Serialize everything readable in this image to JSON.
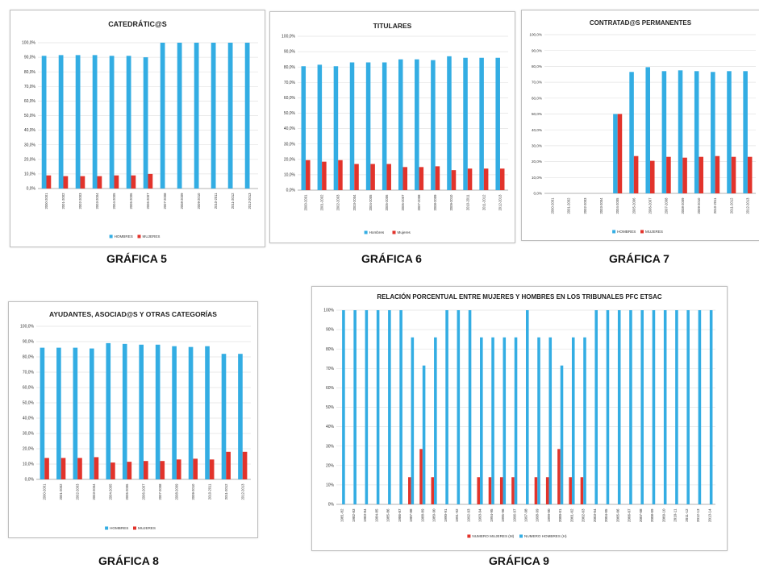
{
  "colors": {
    "hombres": "#33ADE3",
    "mujeres": "#E2332B",
    "grid": "#e3e3e3",
    "axis": "#9a9a9a",
    "text": "#333333"
  },
  "chart_data": [
    {
      "id": "g5",
      "type": "bar",
      "title": "CATEDRÁTIC@S",
      "caption": "GRÁFICA 5",
      "categories": [
        "2000-2001",
        "2001-2002",
        "2002-2003",
        "2003-2004",
        "2004-2005",
        "2005-2006",
        "2006-2007",
        "2007-2008",
        "2008-2009",
        "2009-2010",
        "2010-2011",
        "2011-2012",
        "2012-2013"
      ],
      "series": [
        {
          "name": "HOMBRES",
          "color": "#33ADE3",
          "values": [
            91,
            91.5,
            91.5,
            91.5,
            91,
            91,
            90,
            100,
            100,
            100,
            100,
            100,
            100
          ]
        },
        {
          "name": "MUJERES",
          "color": "#E2332B",
          "values": [
            9,
            8.5,
            8.5,
            8.5,
            9,
            9,
            10,
            0,
            0,
            0,
            0,
            0,
            0
          ]
        }
      ],
      "yticks": [
        "0,0%",
        "10,0%",
        "20,0%",
        "30,0%",
        "40,0%",
        "50,0%",
        "60,0%",
        "70,0%",
        "80,0%",
        "90,0%",
        "100,0%"
      ],
      "ylim": [
        0,
        100
      ],
      "legend": "bottom"
    },
    {
      "id": "g6",
      "type": "bar",
      "title": "TITULARES",
      "caption": "GRÁFICA 6",
      "categories": [
        "2000-2001",
        "2001-2002",
        "2002-2003",
        "2003-2004",
        "2004-2005",
        "2005-2006",
        "2006-2007",
        "2007-2008",
        "2008-2009",
        "2009-2010",
        "2010-2011",
        "2011-2012",
        "2012-2013"
      ],
      "series": [
        {
          "name": "Hombres",
          "color": "#33ADE3",
          "values": [
            80.5,
            81.5,
            80.5,
            83,
            83,
            83,
            85,
            85,
            84.5,
            87,
            86,
            86,
            86
          ]
        },
        {
          "name": "Mujeres",
          "color": "#E2332B",
          "values": [
            19.5,
            18.5,
            19.5,
            17,
            17,
            17,
            15,
            15,
            15.5,
            13,
            14,
            14,
            14
          ]
        }
      ],
      "yticks": [
        "0,0%",
        "10,0%",
        "20,0%",
        "30,0%",
        "40,0%",
        "50,0%",
        "60,0%",
        "70,0%",
        "80,0%",
        "90,0%",
        "100,0%"
      ],
      "ylim": [
        0,
        100
      ],
      "legend": "bottom"
    },
    {
      "id": "g7",
      "type": "bar",
      "title": "CONTRATAD@S PERMANENTES",
      "caption": "GRÁFICA 7",
      "categories": [
        "2000-2001",
        "2001-2002",
        "2002-2003",
        "2003-2004",
        "2004-2005",
        "2005-2006",
        "2006-2007",
        "2007-2008",
        "2008-2009",
        "2009-2010",
        "2010-2011",
        "2011-2012",
        "2012-2013"
      ],
      "series": [
        {
          "name": "HOMBRES",
          "color": "#33ADE3",
          "values": [
            0,
            0,
            0,
            0,
            50,
            76.5,
            79.5,
            77,
            77.5,
            77,
            76.5,
            77,
            77
          ]
        },
        {
          "name": "MUJERES",
          "color": "#E2332B",
          "values": [
            0,
            0,
            0,
            0,
            50,
            23.5,
            20.5,
            23,
            22.5,
            23,
            23.5,
            23,
            23
          ]
        }
      ],
      "yticks": [
        "0,0%",
        "10,0%",
        "20,0%",
        "30,0%",
        "40,0%",
        "50,0%",
        "60,0%",
        "70,0%",
        "80,0%",
        "90,0%",
        "100,0%"
      ],
      "ylim": [
        0,
        100
      ],
      "legend": "bottom"
    },
    {
      "id": "g8",
      "type": "bar",
      "title": "AYUDANTES, ASOCIAD@S Y OTRAS CATEGORÍAS",
      "caption": "GRÁFICA 8",
      "categories": [
        "2000-2001",
        "2001-2002",
        "2002-2003",
        "2003-2004",
        "2004-2005",
        "2005-2006",
        "2006-2007",
        "2007-2008",
        "2008-2009",
        "2009-2010",
        "2010-2011",
        "2011-2012",
        "2012-2013"
      ],
      "series": [
        {
          "name": "HOMBRES",
          "color": "#33ADE3",
          "values": [
            86,
            86,
            86,
            85.5,
            89,
            88.5,
            88,
            88,
            87,
            86.5,
            87,
            82,
            82
          ]
        },
        {
          "name": "MUJERES",
          "color": "#E2332B",
          "values": [
            14,
            14,
            14,
            14.5,
            11,
            11.5,
            12,
            12,
            13,
            13.5,
            13,
            18,
            18
          ]
        }
      ],
      "yticks": [
        "0,0%",
        "10,0%",
        "20,0%",
        "30,0%",
        "40,0%",
        "50,0%",
        "60,0%",
        "70,0%",
        "80,0%",
        "90,0%",
        "100,0%"
      ],
      "ylim": [
        0,
        100
      ],
      "legend": "bottom"
    },
    {
      "id": "g9",
      "type": "bar",
      "title": "RELACIÓN PORCENTUAL ENTRE MUJERES Y HOMBRES EN LOS TRIBUNALES PFC ETSAC",
      "caption": "GRÁFICA 9",
      "categories": [
        "1981-82",
        "1982-83",
        "1983-84",
        "1984-85",
        "1985-86",
        "1986-87",
        "1987-88",
        "1988-89",
        "1989-90",
        "1990-91",
        "1991-92",
        "1992-93",
        "1993-94",
        "1994-95",
        "1995-96",
        "1996-97",
        "1997-98",
        "1998-99",
        "1999-00",
        "2000-01",
        "2001-02",
        "2002-03",
        "2003-04",
        "2004-05",
        "2005-06",
        "2006-07",
        "2007-08",
        "2008-09",
        "2009-10",
        "2010-11",
        "2011-12",
        "2012-13",
        "2013-14"
      ],
      "series": [
        {
          "name": "NUMERO MUJERES (M)",
          "color": "#E2332B",
          "values": [
            0,
            0,
            0,
            0,
            0,
            0,
            14,
            28.5,
            14,
            0,
            0,
            0,
            14,
            14,
            14,
            14,
            0,
            14,
            14,
            28.5,
            14,
            14,
            0,
            0,
            0,
            0,
            0,
            0,
            0,
            0,
            0,
            0,
            0
          ]
        },
        {
          "name": "NUMERO HOMBRES (H)",
          "color": "#33ADE3",
          "values": [
            100,
            100,
            100,
            100,
            100,
            100,
            86,
            71.5,
            86,
            100,
            100,
            100,
            86,
            86,
            86,
            86,
            100,
            86,
            86,
            71.5,
            86,
            86,
            100,
            100,
            100,
            100,
            100,
            100,
            100,
            100,
            100,
            100,
            100
          ]
        }
      ],
      "yticks": [
        "0%",
        "10%",
        "20%",
        "30%",
        "40%",
        "50%",
        "60%",
        "70%",
        "80%",
        "90%",
        "100%"
      ],
      "ylim": [
        0,
        100
      ],
      "legend": "bottom"
    }
  ]
}
